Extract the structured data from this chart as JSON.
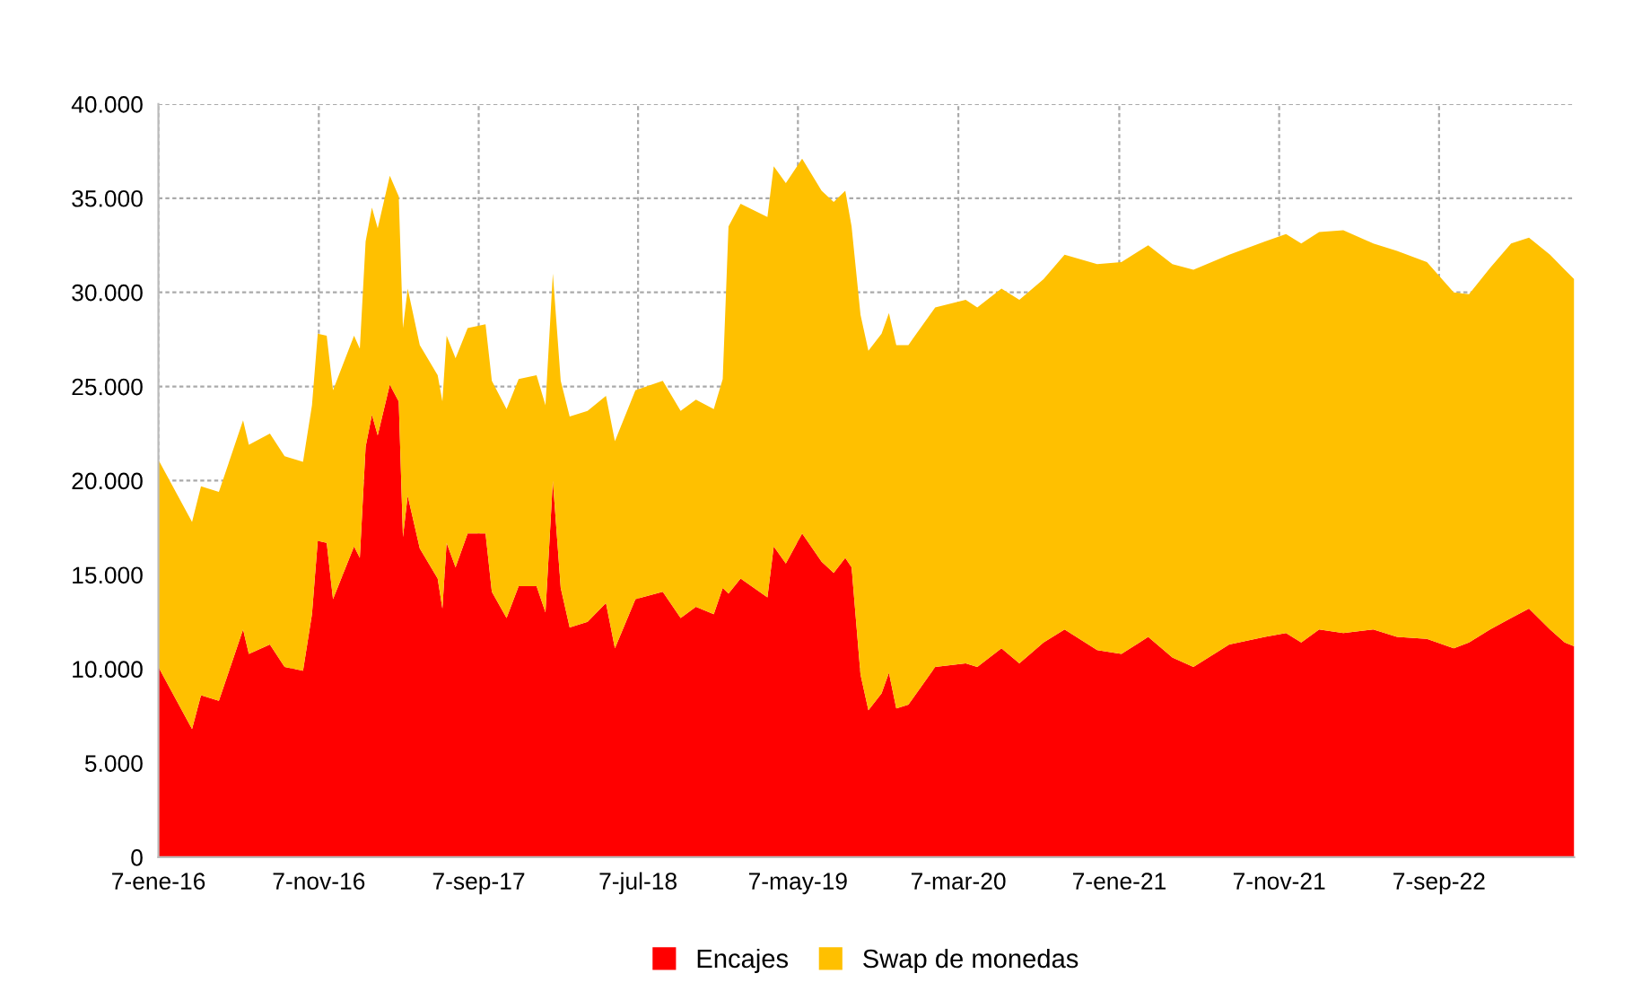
{
  "chart_data": {
    "type": "area",
    "stacked": true,
    "x": [
      "2016-01-07",
      "2016-03-11",
      "2016-03-28",
      "2016-05-01",
      "2016-06-16",
      "2016-06-27",
      "2016-08-06",
      "2016-09-03",
      "2016-10-08",
      "2016-10-25",
      "2016-11-05",
      "2016-11-22",
      "2016-12-04",
      "2017-01-13",
      "2017-01-24",
      "2017-02-04",
      "2017-02-16",
      "2017-02-27",
      "2017-03-22",
      "2017-04-08",
      "2017-04-16",
      "2017-04-25",
      "2017-05-18",
      "2017-06-21",
      "2017-06-30",
      "2017-07-08",
      "2017-07-25",
      "2017-08-17",
      "2017-09-20",
      "2017-10-02",
      "2017-10-30",
      "2017-11-22",
      "2017-12-26",
      "2018-01-12",
      "2018-01-26",
      "2018-02-10",
      "2018-02-27",
      "2018-04-02",
      "2018-05-07",
      "2018-05-24",
      "2018-07-02",
      "2018-08-23",
      "2018-09-26",
      "2018-10-25",
      "2018-11-28",
      "2018-12-15",
      "2018-12-26",
      "2019-01-18",
      "2019-03-10",
      "2019-03-22",
      "2019-04-14",
      "2019-05-15",
      "2019-06-21",
      "2019-07-14",
      "2019-08-05",
      "2019-08-17",
      "2019-09-03",
      "2019-09-18",
      "2019-10-13",
      "2019-10-27",
      "2019-11-10",
      "2019-12-03",
      "2020-01-23",
      "2020-03-21",
      "2020-04-12",
      "2020-05-28",
      "2020-07-01",
      "2020-08-16",
      "2020-09-25",
      "2020-11-26",
      "2021-01-11",
      "2021-03-03",
      "2021-04-18",
      "2021-05-28",
      "2021-08-04",
      "2021-10-11",
      "2021-11-20",
      "2021-12-19",
      "2022-01-22",
      "2022-03-09",
      "2022-05-05",
      "2022-06-19",
      "2022-08-15",
      "2022-10-05",
      "2022-11-03",
      "2022-12-13",
      "2023-01-22",
      "2023-02-25",
      "2023-04-06",
      "2023-05-04",
      "2023-05-22"
    ],
    "series": [
      {
        "name": "Encajes",
        "color": "#ff0000",
        "values": [
          10100,
          6800,
          8600,
          8300,
          12100,
          10800,
          11300,
          10100,
          9900,
          12900,
          16800,
          16700,
          13700,
          16500,
          15900,
          21800,
          23500,
          22400,
          25100,
          24200,
          17000,
          19200,
          16400,
          14800,
          13200,
          16700,
          15400,
          17200,
          17200,
          14100,
          12700,
          14400,
          14400,
          13000,
          20000,
          14300,
          12200,
          12500,
          13500,
          11100,
          13700,
          14100,
          12700,
          13300,
          12900,
          14300,
          14000,
          14800,
          13800,
          16500,
          15600,
          17200,
          15700,
          15100,
          15900,
          15400,
          9700,
          7800,
          8700,
          9800,
          7900,
          8100,
          10100,
          10300,
          10100,
          11100,
          10300,
          11400,
          12100,
          11000,
          10800,
          11700,
          10600,
          10100,
          11300,
          11700,
          11900,
          11400,
          12100,
          11900,
          12100,
          11700,
          11600,
          11100,
          11400,
          12100,
          12700,
          13200,
          12100,
          11400,
          11200
        ]
      },
      {
        "name": "Swap de monedas",
        "color": "#ffc000",
        "values": [
          11000,
          11000,
          11100,
          11100,
          11100,
          11100,
          11200,
          11200,
          11100,
          11100,
          11000,
          11000,
          11100,
          11200,
          11100,
          10900,
          11000,
          11000,
          11100,
          10900,
          11100,
          11000,
          10800,
          10800,
          11000,
          11000,
          11100,
          10900,
          11100,
          11200,
          11100,
          11000,
          11200,
          11000,
          11000,
          11000,
          11200,
          11200,
          11000,
          11000,
          11100,
          11200,
          11000,
          11000,
          10900,
          11100,
          19500,
          19900,
          20200,
          20200,
          20200,
          19900,
          19700,
          19700,
          19500,
          18100,
          19100,
          19100,
          19100,
          19100,
          19300,
          19100,
          19100,
          19300,
          19100,
          19100,
          19300,
          19300,
          19900,
          20500,
          20800,
          20800,
          20900,
          21100,
          20700,
          21000,
          21200,
          21200,
          21100,
          21400,
          20500,
          20500,
          20000,
          18900,
          18500,
          19200,
          19900,
          19700,
          19900,
          19800,
          19500
        ]
      }
    ],
    "xlim": [
      "2016-01-07",
      "2023-05-22"
    ],
    "xticks": [
      {
        "value": "2016-01-07",
        "label": "7-ene-16"
      },
      {
        "value": "2016-11-07",
        "label": "7-nov-16"
      },
      {
        "value": "2017-09-07",
        "label": "7-sep-17"
      },
      {
        "value": "2018-07-07",
        "label": "7-jul-18"
      },
      {
        "value": "2019-05-07",
        "label": "7-may-19"
      },
      {
        "value": "2020-03-07",
        "label": "7-mar-20"
      },
      {
        "value": "2021-01-07",
        "label": "7-ene-21"
      },
      {
        "value": "2021-11-07",
        "label": "7-nov-21"
      },
      {
        "value": "2022-09-07",
        "label": "7-sep-22"
      }
    ],
    "ylim": [
      0,
      40000
    ],
    "yticks": [
      0,
      {
        "value": 5000,
        "label": "5.000"
      },
      {
        "value": 10000,
        "label": "10.000"
      },
      {
        "value": 15000,
        "label": "15.000"
      },
      {
        "value": 20000,
        "label": "20.000"
      },
      {
        "value": 25000,
        "label": "25.000"
      },
      {
        "value": 30000,
        "label": "30.000"
      },
      {
        "value": 35000,
        "label": "35.000"
      },
      {
        "value": 40000,
        "label": "40.000"
      }
    ],
    "grid": true,
    "legend": "bottom"
  }
}
